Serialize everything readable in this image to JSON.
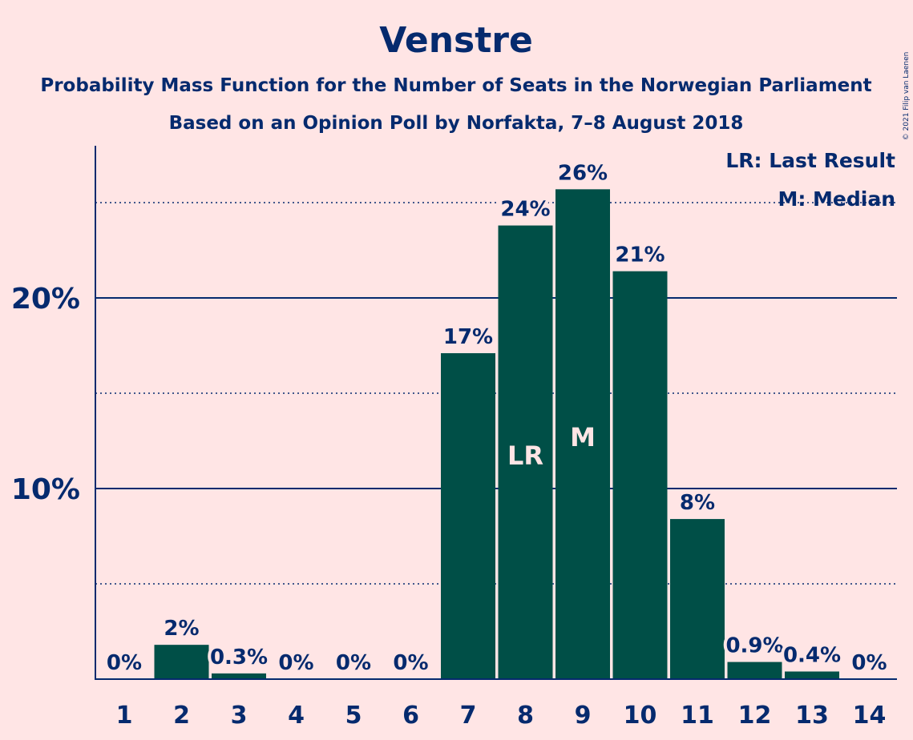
{
  "colors": {
    "background": "#FFE5E5",
    "bar": "#004F47",
    "text": "#052A6E",
    "bar_label_inside": "#FFE5E5"
  },
  "chart_data": {
    "type": "bar",
    "title": "Venstre",
    "subtitle_line1": "Probability Mass Function for the Number of Seats in the Norwegian Parliament",
    "subtitle_line2": "Based on an Opinion Poll by Norfakta, 7–8 August 2018",
    "copyright": "© 2021 Filip van Laenen",
    "categories": [
      "1",
      "2",
      "3",
      "4",
      "5",
      "6",
      "7",
      "8",
      "9",
      "10",
      "11",
      "12",
      "13",
      "14"
    ],
    "values": [
      0,
      1.8,
      0.3,
      0,
      0,
      0,
      17.1,
      23.8,
      25.7,
      21.4,
      8.4,
      0.9,
      0.4,
      0
    ],
    "value_labels": [
      "0%",
      "2%",
      "0.3%",
      "0%",
      "0%",
      "0%",
      "17%",
      "24%",
      "26%",
      "21%",
      "8%",
      "0.9%",
      "0.4%",
      "0%"
    ],
    "ylim": [
      0,
      28
    ],
    "yticks": [
      10,
      20
    ],
    "ytick_labels": [
      "10%",
      "20%"
    ],
    "dotted_gridlines": [
      5,
      15,
      25
    ],
    "markers": {
      "8": "LR",
      "9": "M"
    },
    "legend": [
      "LR: Last Result",
      "M: Median"
    ],
    "legend_position": "top-right",
    "xlabel": "",
    "ylabel": ""
  }
}
